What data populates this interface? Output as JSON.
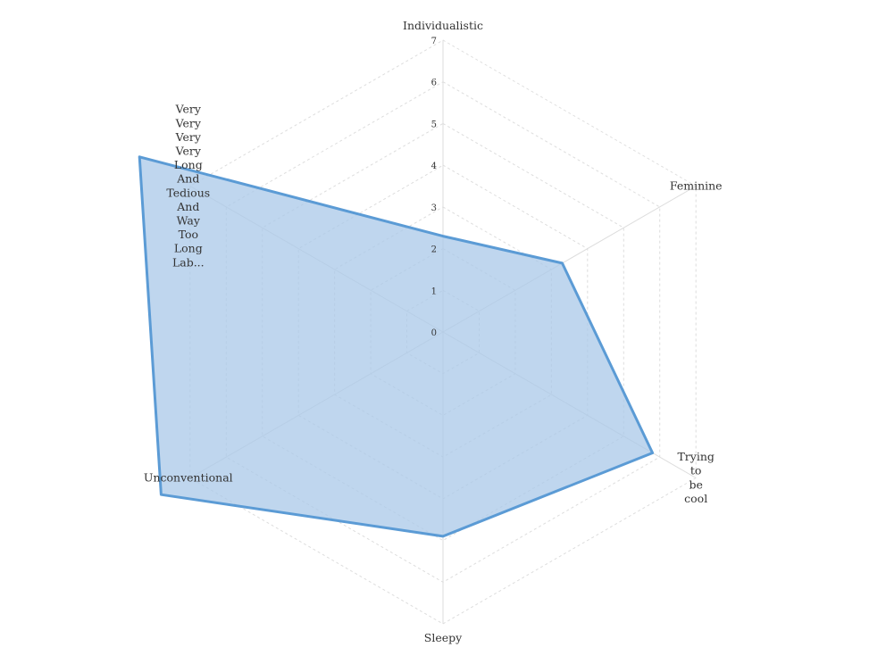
{
  "chart_data": {
    "type": "radar",
    "axes": [
      "Individualistic",
      "Feminine",
      "Trying to be cool",
      "Sleepy",
      "Unconventional",
      "Very Very Very Very Long And Tedious And Way Too Long Lab..."
    ],
    "axis_label_lines": [
      [
        "Individualistic"
      ],
      [
        "Feminine"
      ],
      [
        "Trying",
        "to",
        "be",
        "cool"
      ],
      [
        "Sleepy"
      ],
      [
        "Unconventional"
      ],
      [
        "Very",
        "Very",
        "Very",
        "Very",
        "Long",
        "And",
        "Tedious",
        "And",
        "Way",
        "Too",
        "Long",
        "Lab..."
      ]
    ],
    "radial_ticks": [
      "0",
      "1",
      "2",
      "3",
      "4",
      "5",
      "6",
      "7"
    ],
    "rlim": [
      0,
      7
    ],
    "series": [
      {
        "values": [
          2.3,
          3.3,
          5.8,
          4.9,
          7.8,
          8.4
        ]
      }
    ],
    "grid": true,
    "legend": "none",
    "colors": {
      "series_stroke": "#5b9bd5",
      "series_fill": "#a9c8e8",
      "grid": "#dddddd",
      "text": "#333333"
    }
  }
}
